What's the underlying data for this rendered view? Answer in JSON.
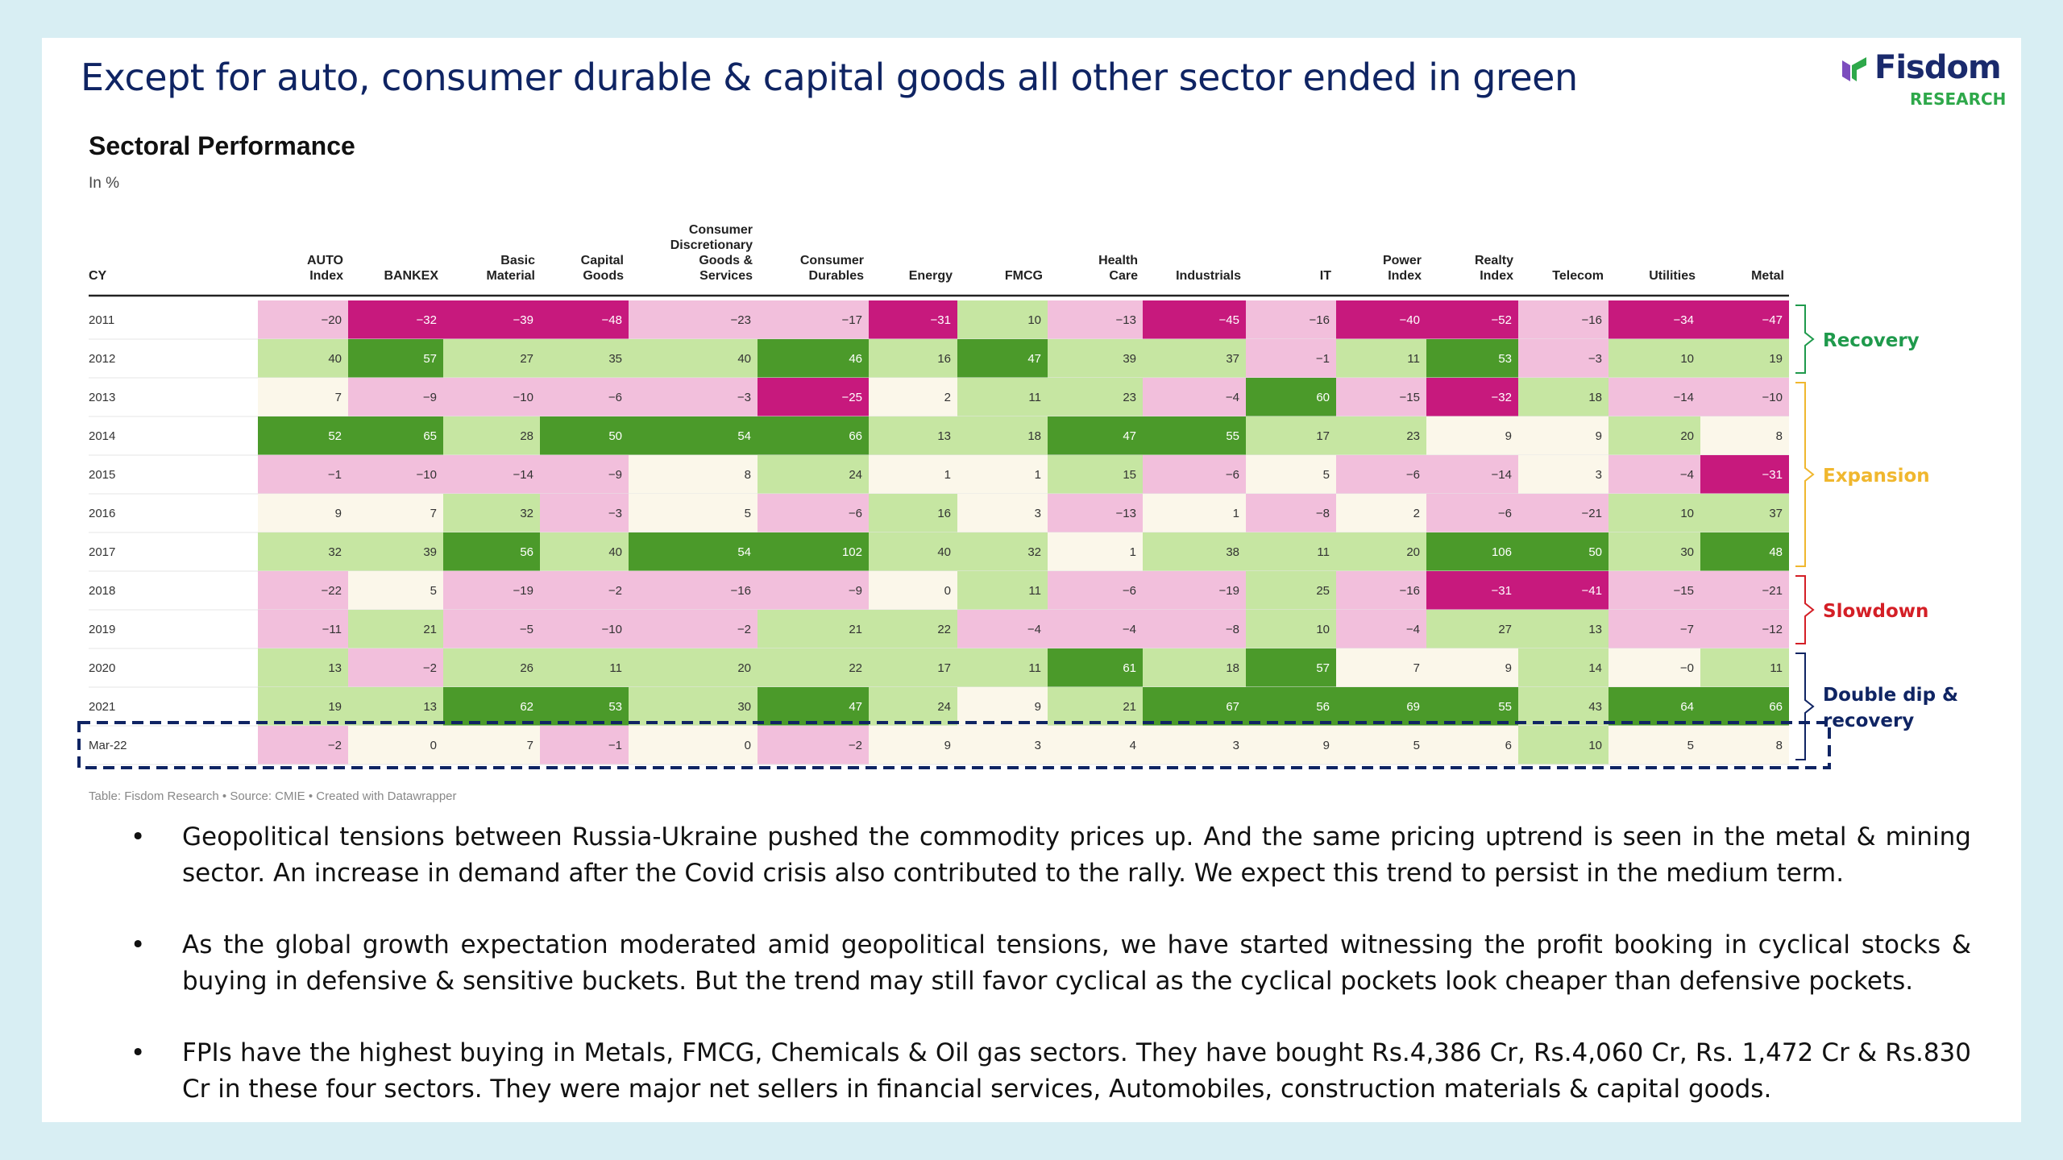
{
  "slide": {
    "title": "Except for auto, consumer durable & capital goods all other sector ended in green",
    "logo": {
      "name": "Fisdom",
      "sub": "RESEARCH"
    },
    "bullets": [
      "Geopolitical tensions between Russia-Ukraine pushed the commodity prices up. And the same pricing uptrend is seen in the metal & mining sector. An increase in demand after the Covid crisis also contributed to the rally. We expect this trend to persist in the medium term.",
      "As the global growth expectation moderated amid geopolitical tensions, we have started witnessing the profit booking in cyclical stocks & buying in defensive & sensitive buckets. But the trend may still favor cyclical as the cyclical pockets look cheaper than defensive pockets.",
      "FPIs have the highest buying in Metals, FMCG, Chemicals & Oil gas sectors. They have bought Rs.4,386 Cr, Rs.4,060 Cr, Rs. 1,472 Cr & Rs.830 Cr in these four sectors. They were major net sellers in financial services, Automobiles, construction materials & capital goods."
    ]
  },
  "chart_data": {
    "type": "heatmap",
    "title": "Sectoral Performance",
    "subtitle": "In %",
    "row_header": "CY",
    "footnote": "Table: Fisdom Research • Source: CMIE • Created with Datawrapper",
    "columns": [
      [
        "AUTO",
        "Index"
      ],
      [
        "BANKEX"
      ],
      [
        "Basic",
        "Material"
      ],
      [
        "Capital",
        "Goods"
      ],
      [
        "Consumer",
        "Discretionary",
        "Goods &",
        "Services"
      ],
      [
        "Consumer",
        "Durables"
      ],
      [
        "Energy"
      ],
      [
        "FMCG"
      ],
      [
        "Health",
        "Care"
      ],
      [
        "Industrials"
      ],
      [
        "IT"
      ],
      [
        "Power",
        "Index"
      ],
      [
        "Realty",
        "Index"
      ],
      [
        "Telecom"
      ],
      [
        "Utilities"
      ],
      [
        "Metal"
      ]
    ],
    "rows": [
      {
        "label": "2011",
        "values": [
          "−20",
          "−32",
          "−39",
          "−48",
          "−23",
          "−17",
          "−31",
          "10",
          "−13",
          "−45",
          "−16",
          "−40",
          "−52",
          "−16",
          "−34",
          "−47"
        ]
      },
      {
        "label": "2012",
        "values": [
          "40",
          "57",
          "27",
          "35",
          "40",
          "46",
          "16",
          "47",
          "39",
          "37",
          "−1",
          "11",
          "53",
          "−3",
          "10",
          "19"
        ]
      },
      {
        "label": "2013",
        "values": [
          "7",
          "−9",
          "−10",
          "−6",
          "−3",
          "−25",
          "2",
          "11",
          "23",
          "−4",
          "60",
          "−15",
          "−32",
          "18",
          "−14",
          "−10"
        ]
      },
      {
        "label": "2014",
        "values": [
          "52",
          "65",
          "28",
          "50",
          "54",
          "66",
          "13",
          "18",
          "47",
          "55",
          "17",
          "23",
          "9",
          "9",
          "20",
          "8"
        ]
      },
      {
        "label": "2015",
        "values": [
          "−1",
          "−10",
          "−14",
          "−9",
          "8",
          "24",
          "1",
          "1",
          "15",
          "−6",
          "5",
          "−6",
          "−14",
          "3",
          "−4",
          "−31"
        ]
      },
      {
        "label": "2016",
        "values": [
          "9",
          "7",
          "32",
          "−3",
          "5",
          "−6",
          "16",
          "3",
          "−13",
          "1",
          "−8",
          "2",
          "−6",
          "−21",
          "10",
          "37"
        ]
      },
      {
        "label": "2017",
        "values": [
          "32",
          "39",
          "56",
          "40",
          "54",
          "102",
          "40",
          "32",
          "1",
          "38",
          "11",
          "20",
          "106",
          "50",
          "30",
          "48"
        ]
      },
      {
        "label": "2018",
        "values": [
          "−22",
          "5",
          "−19",
          "−2",
          "−16",
          "−9",
          "0",
          "11",
          "−6",
          "−19",
          "25",
          "−16",
          "−31",
          "−41",
          "−15",
          "−21"
        ]
      },
      {
        "label": "2019",
        "values": [
          "−11",
          "21",
          "−5",
          "−10",
          "−2",
          "21",
          "22",
          "−4",
          "−4",
          "−8",
          "10",
          "−4",
          "27",
          "13",
          "−7",
          "−12"
        ]
      },
      {
        "label": "2020",
        "values": [
          "13",
          "−2",
          "26",
          "11",
          "20",
          "22",
          "17",
          "11",
          "61",
          "18",
          "57",
          "7",
          "9",
          "14",
          "−0",
          "11"
        ]
      },
      {
        "label": "2021",
        "values": [
          "19",
          "13",
          "62",
          "53",
          "30",
          "47",
          "24",
          "9",
          "21",
          "67",
          "56",
          "69",
          "55",
          "43",
          "64",
          "66"
        ]
      },
      {
        "label": "Mar-22",
        "values": [
          "−2",
          "0",
          "7",
          "−1",
          "0",
          "−2",
          "9",
          "3",
          "4",
          "3",
          "9",
          "5",
          "6",
          "10",
          "5",
          "8"
        ]
      }
    ],
    "colors": {
      "strong_neg": "#c7197d",
      "neg": "#f2bfdc",
      "neutral": "#fbf7ea",
      "pos": "#c6e6a2",
      "strong_pos": "#4b9a2a"
    },
    "annotations": [
      {
        "label": "Recovery",
        "rows": [
          "2011",
          "2012"
        ],
        "color": "#1f9a4c"
      },
      {
        "label": "Expansion",
        "rows": [
          "2013",
          "2017"
        ],
        "color": "#f0b72e"
      },
      {
        "label": "Slowdown",
        "rows": [
          "2018",
          "2019"
        ],
        "color": "#d41f26"
      },
      {
        "label": "Double dip & recovery",
        "lines": [
          "Double dip &",
          "recovery"
        ],
        "rows": [
          "2020",
          "Mar-22"
        ],
        "color": "#0f2463"
      }
    ],
    "highlight_row": "Mar-22"
  }
}
